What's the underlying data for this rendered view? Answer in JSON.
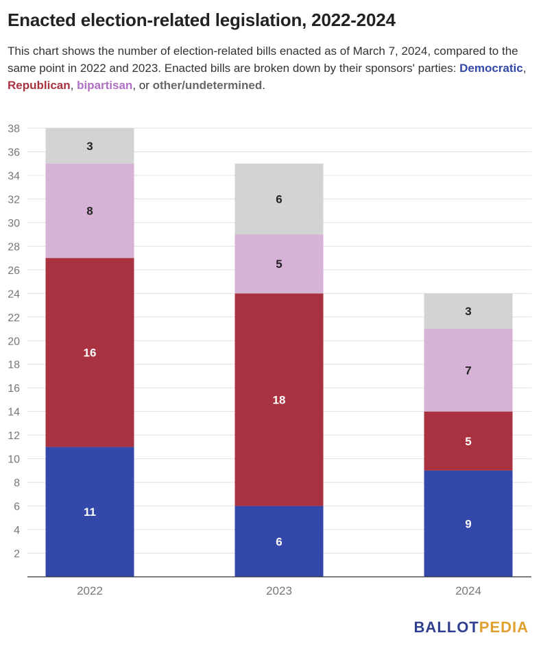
{
  "title": "Enacted election-related legislation, 2022-2024",
  "description": {
    "text": "This chart shows the number of election-related bills enacted as of March 7, 2024, compared to the same point in 2022 and 2023. Enacted bills are broken down by their sponsors' parties: ",
    "legend": [
      {
        "label": "Democratic",
        "sep": ", "
      },
      {
        "label": "Republican",
        "sep": ", "
      },
      {
        "label": "bipartisan",
        "sep": ", or "
      },
      {
        "label": "other/undetermined",
        "sep": "."
      }
    ]
  },
  "colors": {
    "democratic": "#3348a8",
    "republican": "#a8323f",
    "bipartisan": "#d5b2d6",
    "other": "#d3d3d3",
    "grid": "#e0e0e0",
    "axis_text": "#777777"
  },
  "chart_data": {
    "type": "bar",
    "stacked": true,
    "categories": [
      "2022",
      "2023",
      "2024"
    ],
    "series": [
      {
        "name": "Democratic",
        "color_key": "democratic",
        "label_color": "#ffffff",
        "values": [
          11,
          6,
          9
        ]
      },
      {
        "name": "Republican",
        "color_key": "republican",
        "label_color": "#ffffff",
        "values": [
          16,
          18,
          5
        ]
      },
      {
        "name": "bipartisan",
        "color_key": "bipartisan",
        "label_color": "#222222",
        "values": [
          8,
          5,
          7
        ]
      },
      {
        "name": "other/undetermined",
        "color_key": "other",
        "label_color": "#222222",
        "values": [
          3,
          6,
          3
        ]
      }
    ],
    "ylim": [
      0,
      38
    ],
    "yticks": [
      2,
      4,
      6,
      8,
      10,
      12,
      14,
      16,
      18,
      20,
      22,
      24,
      26,
      28,
      30,
      32,
      34,
      36,
      38
    ],
    "grid": true,
    "legend": "in-text"
  },
  "logo": {
    "part1": "BALLOT",
    "part2": "PEDIA"
  }
}
